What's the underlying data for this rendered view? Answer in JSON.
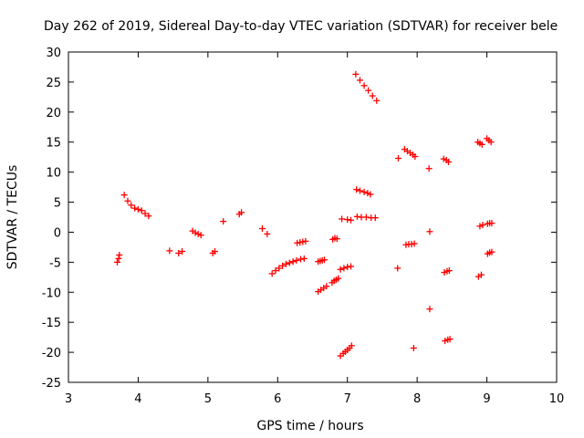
{
  "chart_data": {
    "type": "scatter",
    "title": "Day 262 of 2019, Sidereal Day-to-day VTEC variation (SDTVAR) for receiver bele",
    "xlabel": "GPS time / hours",
    "ylabel": "SDTVAR / TECUs",
    "xlim": [
      3,
      10
    ],
    "ylim": [
      -25,
      30
    ],
    "xticks": [
      3,
      4,
      5,
      6,
      7,
      8,
      9,
      10
    ],
    "yticks": [
      -25,
      -20,
      -15,
      -10,
      -5,
      0,
      5,
      10,
      15,
      20,
      25,
      30
    ],
    "grid": false,
    "marker": "plus",
    "color": "#ff0000",
    "segments": [
      {
        "x": [
          3.7,
          3.72,
          3.73
        ],
        "y": [
          -5.0,
          -4.4,
          -3.8
        ]
      },
      {
        "x": [
          3.8,
          3.85,
          3.9,
          3.95,
          4.0,
          4.05,
          4.1,
          4.15
        ],
        "y": [
          6.2,
          5.2,
          4.5,
          4.0,
          3.8,
          3.6,
          3.1,
          2.7
        ]
      },
      {
        "x": [
          4.45,
          4.58,
          4.63
        ],
        "y": [
          -3.1,
          -3.5,
          -3.2
        ]
      },
      {
        "x": [
          4.78,
          4.82,
          4.86,
          4.9
        ],
        "y": [
          0.2,
          -0.1,
          -0.3,
          -0.5
        ]
      },
      {
        "x": [
          5.07,
          5.1
        ],
        "y": [
          -3.5,
          -3.2
        ]
      },
      {
        "x": [
          5.22
        ],
        "y": [
          1.8
        ]
      },
      {
        "x": [
          5.45,
          5.48
        ],
        "y": [
          3.0,
          3.3
        ]
      },
      {
        "x": [
          5.78,
          5.85
        ],
        "y": [
          0.6,
          -0.3
        ]
      },
      {
        "x": [
          5.92,
          5.97,
          6.02,
          6.07,
          6.12,
          6.17,
          6.22,
          6.27,
          6.33,
          6.38
        ],
        "y": [
          -6.9,
          -6.4,
          -6.0,
          -5.6,
          -5.3,
          -5.1,
          -4.9,
          -4.7,
          -4.5,
          -4.4
        ]
      },
      {
        "x": [
          6.28,
          6.32,
          6.36,
          6.4
        ],
        "y": [
          -1.8,
          -1.7,
          -1.6,
          -1.5
        ]
      },
      {
        "x": [
          6.58,
          6.61,
          6.64,
          6.67
        ],
        "y": [
          -4.9,
          -4.8,
          -4.7,
          -4.6
        ]
      },
      {
        "x": [
          6.58,
          6.62,
          6.66,
          6.7
        ],
        "y": [
          -9.9,
          -9.6,
          -9.3,
          -9.0
        ]
      },
      {
        "x": [
          6.78,
          6.81,
          6.84,
          6.87
        ],
        "y": [
          -8.4,
          -8.1,
          -7.9,
          -7.7
        ]
      },
      {
        "x": [
          6.79,
          6.82,
          6.85
        ],
        "y": [
          -1.2,
          -1.0,
          -1.1
        ]
      },
      {
        "x": [
          6.9,
          6.94,
          6.97,
          7.0,
          7.03,
          7.06
        ],
        "y": [
          -20.6,
          -20.2,
          -19.9,
          -19.6,
          -19.3,
          -18.9
        ]
      },
      {
        "x": [
          6.9,
          6.95,
          7.0,
          7.05
        ],
        "y": [
          -6.2,
          -6.0,
          -5.8,
          -5.7
        ]
      },
      {
        "x": [
          6.92,
          7.0,
          7.05
        ],
        "y": [
          2.2,
          2.1,
          2.0
        ]
      },
      {
        "x": [
          7.12,
          7.18,
          7.24,
          7.3,
          7.36,
          7.42
        ],
        "y": [
          26.3,
          25.3,
          24.4,
          23.6,
          22.7,
          21.9
        ]
      },
      {
        "x": [
          7.13,
          7.18,
          7.24,
          7.29,
          7.33
        ],
        "y": [
          7.1,
          6.9,
          6.7,
          6.5,
          6.3
        ]
      },
      {
        "x": [
          7.14,
          7.2,
          7.27,
          7.34,
          7.4
        ],
        "y": [
          2.6,
          2.5,
          2.5,
          2.4,
          2.4
        ]
      },
      {
        "x": [
          7.72
        ],
        "y": [
          -6.0
        ]
      },
      {
        "x": [
          7.73
        ],
        "y": [
          12.3
        ]
      },
      {
        "x": [
          7.82,
          7.86,
          7.9,
          7.94,
          7.97
        ],
        "y": [
          13.8,
          13.5,
          13.2,
          12.9,
          12.6
        ]
      },
      {
        "x": [
          7.84,
          7.88,
          7.92,
          7.96
        ],
        "y": [
          -2.1,
          -2.0,
          -2.0,
          -1.9
        ]
      },
      {
        "x": [
          7.95
        ],
        "y": [
          -19.3
        ]
      },
      {
        "x": [
          8.17
        ],
        "y": [
          10.6
        ]
      },
      {
        "x": [
          8.18
        ],
        "y": [
          0.1
        ]
      },
      {
        "x": [
          8.18
        ],
        "y": [
          -12.8
        ]
      },
      {
        "x": [
          8.38,
          8.42,
          8.45
        ],
        "y": [
          12.2,
          12.0,
          11.7
        ]
      },
      {
        "x": [
          8.39,
          8.43,
          8.46
        ],
        "y": [
          -6.7,
          -6.5,
          -6.4
        ]
      },
      {
        "x": [
          8.4,
          8.44,
          8.47
        ],
        "y": [
          -18.1,
          -17.9,
          -17.8
        ]
      },
      {
        "x": [
          8.87,
          8.9,
          8.93
        ],
        "y": [
          15.0,
          14.8,
          14.6
        ]
      },
      {
        "x": [
          8.88,
          8.92
        ],
        "y": [
          -7.4,
          -7.1
        ]
      },
      {
        "x": [
          8.9,
          8.94
        ],
        "y": [
          1.0,
          1.2
        ]
      },
      {
        "x": [
          9.0,
          9.03,
          9.06
        ],
        "y": [
          15.6,
          15.3,
          15.0
        ]
      },
      {
        "x": [
          9.01,
          9.04,
          9.07
        ],
        "y": [
          1.4,
          1.5,
          1.5
        ]
      },
      {
        "x": [
          9.01,
          9.04,
          9.07
        ],
        "y": [
          -3.6,
          -3.4,
          -3.3
        ]
      }
    ]
  }
}
